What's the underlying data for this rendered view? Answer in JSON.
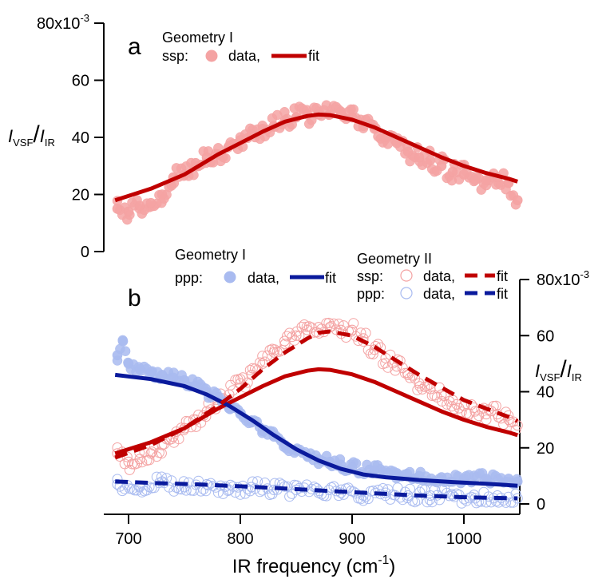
{
  "colors": {
    "ssp_data": "#F4A3A3",
    "ssp_fit": "#C00000",
    "ppp_data": "#A9BBF0",
    "ppp_fit": "#0A1A9C"
  },
  "chart_data": [
    {
      "type": "scatter",
      "panel_label": "a",
      "ylabel": "I_VSF/I_IR",
      "ylabel_parts": {
        "i1": "I",
        "sub1": "VSF",
        "slash": "/",
        "i2": "I",
        "sub2": "IR"
      },
      "ylim": [
        0,
        80
      ],
      "y_ticks": [
        {
          "v": 0,
          "label": "0"
        },
        {
          "v": 20,
          "label": "20"
        },
        {
          "v": 40,
          "label": "40"
        },
        {
          "v": 60,
          "label": "60"
        },
        {
          "v": 80,
          "label": "80x10",
          "sup": "-3"
        }
      ],
      "xlim": [
        685,
        1050
      ],
      "legend": {
        "title": "Geometry I",
        "row_prefix": "ssp:",
        "data_label": "data,",
        "fit_label": "fit"
      },
      "series": [
        {
          "name": "ssp data",
          "style": "filled_circle",
          "color": "#F4A3A3",
          "x": [
            690,
            700,
            710,
            720,
            730,
            740,
            750,
            760,
            770,
            780,
            790,
            800,
            810,
            820,
            830,
            840,
            850,
            860,
            870,
            880,
            890,
            900,
            910,
            920,
            930,
            940,
            950,
            960,
            970,
            980,
            990,
            1000,
            1010,
            1020,
            1030,
            1040,
            1048
          ],
          "y": [
            15,
            14,
            16,
            17,
            20,
            26,
            27,
            31,
            33,
            34,
            37,
            39,
            41,
            43,
            44,
            46,
            47,
            48,
            48,
            48,
            49,
            47,
            44,
            43,
            40,
            38,
            35,
            33,
            32,
            30,
            28,
            27,
            25,
            25,
            26,
            24,
            18
          ]
        },
        {
          "name": "ssp fit",
          "style": "solid",
          "color": "#C00000",
          "x": [
            688,
            720,
            750,
            780,
            800,
            820,
            840,
            860,
            870,
            880,
            900,
            920,
            940,
            960,
            980,
            1000,
            1020,
            1040,
            1048
          ],
          "y": [
            18,
            22,
            27,
            34,
            38,
            42,
            45.5,
            47.5,
            48,
            47.8,
            46.2,
            43.5,
            40,
            36.5,
            33,
            30,
            27.5,
            25.5,
            24.5
          ]
        }
      ]
    },
    {
      "type": "scatter",
      "panel_label": "b",
      "xlabel": "IR frequency (cm",
      "xlabel_sup": "-1",
      "xlabel_close": ")",
      "ylabel": "I_VSF/I_IR",
      "ylabel_parts": {
        "i1": "I",
        "sub1": "VSF",
        "slash": "/",
        "i2": "I",
        "sub2": "IR"
      },
      "ylim": [
        0,
        80
      ],
      "y_ticks": [
        {
          "v": 0,
          "label": "0"
        },
        {
          "v": 20,
          "label": "20"
        },
        {
          "v": 40,
          "label": "40"
        },
        {
          "v": 60,
          "label": "60"
        },
        {
          "v": 80,
          "label": "80x10",
          "sup": "-3"
        }
      ],
      "xlim": [
        685,
        1050
      ],
      "x_ticks": [
        {
          "v": 700,
          "label": "700"
        },
        {
          "v": 800,
          "label": "800"
        },
        {
          "v": 900,
          "label": "900"
        },
        {
          "v": 1000,
          "label": "1000"
        }
      ],
      "legend_geom1": {
        "title": "Geometry I",
        "row_prefix": "ppp:",
        "data_label": "data,",
        "fit_label": "fit"
      },
      "legend_geom2": {
        "title": "Geometry II",
        "row1_prefix": "ssp:",
        "row2_prefix": "ppp:",
        "data_label": "data,",
        "fit_label": "fit"
      },
      "series": [
        {
          "name": "Geometry I ppp data",
          "style": "filled_circle",
          "color": "#A9BBF0",
          "x": [
            690,
            695,
            700,
            710,
            720,
            730,
            740,
            750,
            760,
            770,
            780,
            790,
            800,
            810,
            820,
            830,
            840,
            850,
            860,
            870,
            880,
            890,
            900,
            920,
            940,
            960,
            980,
            1000,
            1020,
            1040,
            1048
          ],
          "y": [
            53,
            58,
            50,
            48,
            47,
            46,
            45,
            44,
            42,
            40,
            38,
            34,
            32,
            29,
            26,
            24,
            21,
            19,
            17,
            16,
            15,
            14,
            13,
            12,
            11,
            10,
            9.5,
            9,
            9,
            9,
            8
          ]
        },
        {
          "name": "Geometry I ppp fit",
          "style": "solid",
          "color": "#0A1A9C",
          "x": [
            688,
            720,
            750,
            770,
            790,
            810,
            830,
            850,
            870,
            890,
            910,
            930,
            960,
            990,
            1020,
            1048
          ],
          "y": [
            46,
            44.5,
            42,
            39,
            35,
            30,
            24.5,
            19.5,
            15.5,
            12.5,
            10.5,
            9.5,
            8.5,
            7.8,
            7.2,
            6.5
          ]
        },
        {
          "name": "Geometry I ssp fit",
          "style": "solid",
          "color": "#C00000",
          "x": [
            688,
            720,
            750,
            780,
            800,
            820,
            840,
            860,
            870,
            880,
            900,
            920,
            940,
            960,
            980,
            1000,
            1020,
            1040,
            1048
          ],
          "y": [
            18,
            22,
            27,
            34,
            38,
            42,
            45.5,
            47.5,
            48,
            47.8,
            46.2,
            43.5,
            40,
            36.5,
            33,
            30,
            27.5,
            25.5,
            24.5
          ]
        },
        {
          "name": "Geometry II ssp data",
          "style": "open_circle",
          "color": "#F4A3A3",
          "x": [
            690,
            700,
            710,
            720,
            730,
            740,
            750,
            760,
            770,
            780,
            790,
            800,
            810,
            820,
            830,
            840,
            850,
            860,
            870,
            880,
            890,
            900,
            910,
            920,
            930,
            940,
            950,
            960,
            970,
            980,
            990,
            1000,
            1010,
            1020,
            1030,
            1040,
            1048
          ],
          "y": [
            18,
            15,
            16,
            18,
            21,
            24,
            27,
            30,
            33,
            36,
            39,
            43,
            46,
            50,
            54,
            57,
            60,
            62,
            63,
            63,
            62,
            62,
            59,
            55,
            52,
            49,
            46,
            43,
            41,
            39,
            37,
            35,
            33,
            32,
            32,
            30,
            28
          ]
        },
        {
          "name": "Geometry II ssp fit",
          "style": "dashed",
          "color": "#C00000",
          "x": [
            688,
            720,
            750,
            780,
            800,
            820,
            840,
            860,
            870,
            880,
            900,
            920,
            940,
            960,
            980,
            1000,
            1020,
            1040,
            1048
          ],
          "y": [
            16.5,
            21,
            27,
            35,
            41,
            48,
            54,
            59,
            61,
            61.5,
            60,
            56,
            51,
            46,
            41.5,
            37,
            34,
            31,
            29.5
          ]
        },
        {
          "name": "Geometry II ppp data",
          "style": "open_circle",
          "color": "#A9BBF0",
          "x": [
            690,
            710,
            730,
            750,
            770,
            790,
            810,
            830,
            850,
            870,
            890,
            910,
            930,
            950,
            970,
            990,
            1010,
            1030,
            1048
          ],
          "y": [
            7,
            6,
            8,
            6,
            7,
            5,
            6,
            5,
            5,
            4,
            4,
            3,
            4,
            3,
            3,
            3,
            2,
            3,
            2
          ]
        },
        {
          "name": "Geometry II ppp fit",
          "style": "dashed",
          "color": "#0A1A9C",
          "x": [
            688,
            720,
            760,
            800,
            840,
            880,
            920,
            960,
            1000,
            1048
          ],
          "y": [
            8,
            7.5,
            7,
            6.3,
            5.5,
            4.6,
            3.8,
            3,
            2.4,
            2
          ]
        }
      ]
    }
  ]
}
